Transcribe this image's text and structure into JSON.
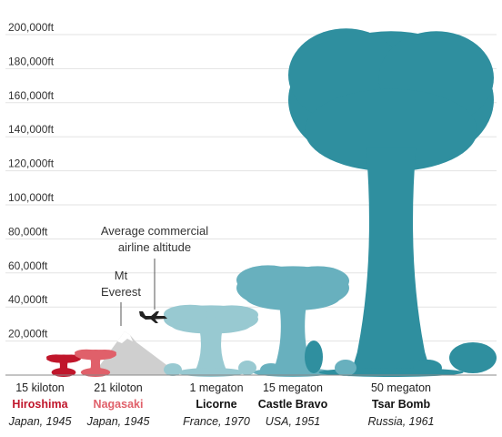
{
  "chart_data": {
    "type": "bar",
    "y_unit": "ft",
    "ylim": [
      0,
      210000
    ],
    "y_ticks": [
      "20,000ft",
      "40,000ft",
      "60,000ft",
      "80,000ft",
      "100,000ft",
      "120,000ft",
      "140,000ft",
      "160,000ft",
      "180,000ft",
      "200,000ft"
    ],
    "y_tick_values": [
      20000,
      40000,
      60000,
      80000,
      100000,
      120000,
      140000,
      160000,
      180000,
      200000
    ],
    "grid": true,
    "categories": [
      "Hiroshima",
      "Nagasaki",
      "Licorne",
      "Castle Bravo",
      "Tsar Bomb"
    ],
    "series": [
      {
        "values": [
          12000,
          15000,
          41000,
          64000,
          202000
        ]
      }
    ],
    "bombs": [
      {
        "yield": "15 kiloton",
        "name": "Hiroshima",
        "origin": "Japan, 1945",
        "cloud_top_ft": 12000,
        "color": "#c0162b",
        "name_color": "#c0162b"
      },
      {
        "yield": "21 kiloton",
        "name": "Nagasaki",
        "origin": "Japan, 1945",
        "cloud_top_ft": 15000,
        "color": "#e0606a",
        "name_color": "#e0606a"
      },
      {
        "yield": "1 megaton",
        "name": "Licorne",
        "origin": "France, 1970",
        "cloud_top_ft": 41000,
        "color": "#98c9d1",
        "name_color": "#111111"
      },
      {
        "yield": "15 megaton",
        "name": "Castle Bravo",
        "origin": "USA, 1951",
        "cloud_top_ft": 64000,
        "color": "#68b0be",
        "name_color": "#111111"
      },
      {
        "yield": "50 megaton",
        "name": "Tsar Bomb",
        "origin": "Russia, 1961",
        "cloud_top_ft": 202000,
        "color": "#2f8f9f",
        "name_color": "#111111"
      }
    ],
    "annotations": [
      {
        "label_lines": [
          "Average commercial",
          "airline altitude"
        ],
        "y_ft": 35000
      },
      {
        "label_lines": [
          "Mt",
          "Everest"
        ],
        "y_ft": 29000
      }
    ]
  }
}
